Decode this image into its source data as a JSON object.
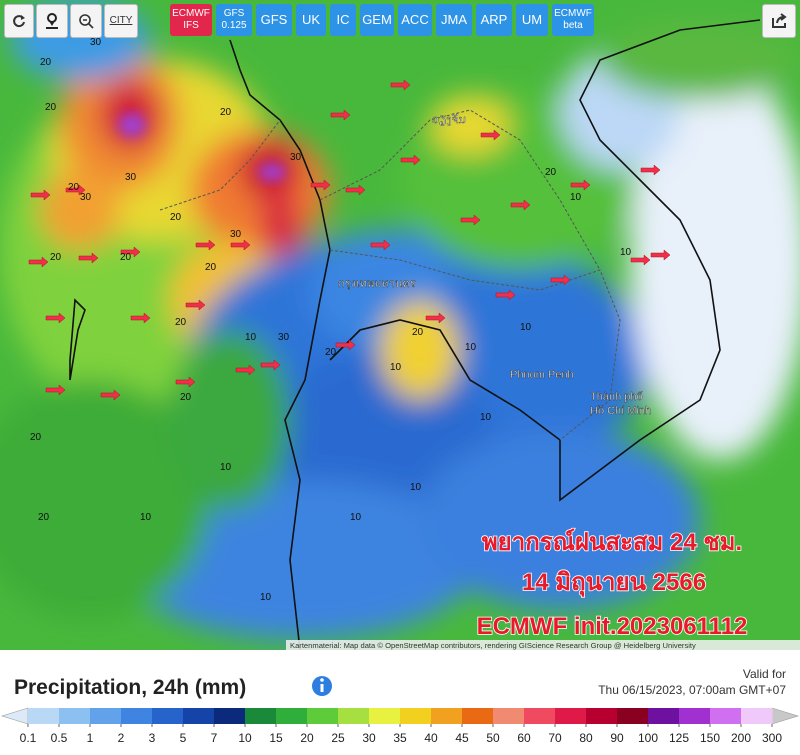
{
  "toolbar": {
    "city": "CITY",
    "models": [
      [
        "ECMWF",
        "IFS"
      ],
      [
        "GFS",
        "0.125"
      ],
      [
        "GFS"
      ],
      [
        "UK"
      ],
      [
        "IC"
      ],
      [
        "GEM"
      ],
      [
        "ACC"
      ],
      [
        "JMA"
      ],
      [
        "ARP"
      ],
      [
        "UM"
      ],
      [
        "ECMWF",
        "beta"
      ]
    ],
    "active_model": 0
  },
  "map": {
    "places": [
      "ວຽງຈັນ",
      "กรุงเทพมหานคร",
      "Phnom Penh",
      "Thành phố",
      "Hồ Chí Minh"
    ],
    "contour_labels": [
      20,
      20,
      30,
      20,
      20,
      20,
      30,
      20,
      20,
      10,
      30,
      20,
      20,
      20,
      20,
      10,
      10,
      10,
      10,
      20,
      30,
      20,
      30,
      20,
      30,
      10,
      10,
      10,
      10,
      10,
      10,
      10,
      20
    ],
    "overlay": [
      "พยากรณ์ฝนสะสม 24 ชม.",
      "14 มิถุนายน 2566",
      "ECMWF init.2023061112"
    ],
    "attribution": "Kartenmaterial: Map data © OpenStreetMap contributors, rendering GIScience Research Group @ Heidelberg University"
  },
  "legend": {
    "title": "Precipitation, 24h (mm)",
    "valid_label": "Valid for",
    "valid_time": "Thu 06/15/2023, 07:00am GMT+07",
    "scale": [
      0.1,
      0.5,
      1,
      2,
      3,
      5,
      7,
      10,
      15,
      20,
      25,
      30,
      35,
      40,
      45,
      50,
      60,
      70,
      80,
      90,
      100,
      125,
      150,
      200,
      300
    ],
    "colors": [
      "#b8d8f6",
      "#8cc0f0",
      "#62a2ea",
      "#3e84e0",
      "#2664cc",
      "#1444a8",
      "#0c2a7c",
      "#1a8a3a",
      "#2fae3c",
      "#5ecc3a",
      "#a6e040",
      "#e8f040",
      "#f2d020",
      "#f2a020",
      "#ea6a14",
      "#f08a70",
      "#f04a60",
      "#e01a48",
      "#b80030",
      "#8a0020",
      "#6e10a0",
      "#a030d0",
      "#d070f0",
      "#f0c8fa"
    ],
    "below_color": "#dbe9f8",
    "above_color": "#c8c8c8"
  }
}
